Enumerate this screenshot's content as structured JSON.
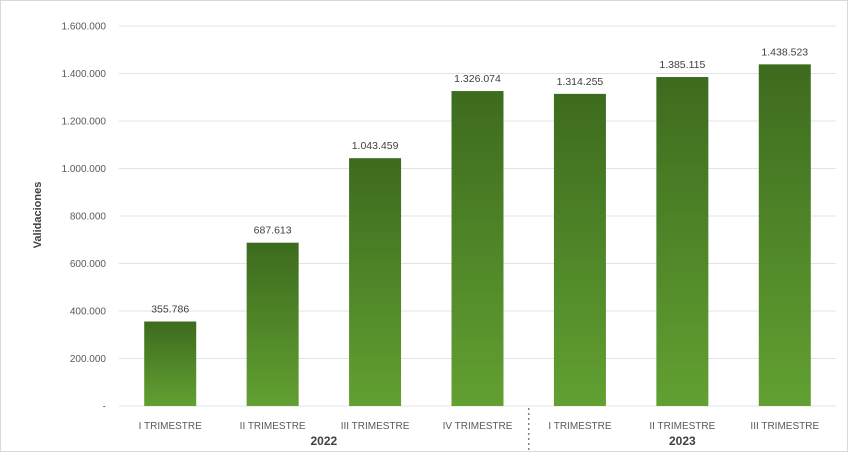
{
  "chart_data": {
    "type": "bar",
    "title": "",
    "ylabel": "Validaciones",
    "ylim": [
      0,
      1600000
    ],
    "y_ticks": [
      "-",
      "200.000",
      "400.000",
      "600.000",
      "800.000",
      "1.000.000",
      "1.200.000",
      "1.400.000",
      "1.600.000"
    ],
    "grid": true,
    "legend": "none",
    "bar_color_top": "#3d6b1e",
    "bar_color_bottom": "#62a032",
    "categories": [
      {
        "label": "I TRIMESTRE",
        "group": "2022",
        "value": 355786,
        "data_label": "355.786"
      },
      {
        "label": "II TRIMESTRE",
        "group": "2022",
        "value": 687613,
        "data_label": "687.613"
      },
      {
        "label": "III TRIMESTRE",
        "group": "2022",
        "value": 1043459,
        "data_label": "1.043.459"
      },
      {
        "label": "IV TRIMESTRE",
        "group": "2022",
        "value": 1326074,
        "data_label": "1.326.074"
      },
      {
        "label": "I TRIMESTRE",
        "group": "2023",
        "value": 1314255,
        "data_label": "1.314.255"
      },
      {
        "label": "II TRIMESTRE",
        "group": "2023",
        "value": 1385115,
        "data_label": "1.385.115"
      },
      {
        "label": "III TRIMESTRE",
        "group": "2023",
        "value": 1438523,
        "data_label": "1.438.523"
      }
    ],
    "groups": [
      {
        "label": "2022"
      },
      {
        "label": "2023"
      }
    ]
  }
}
